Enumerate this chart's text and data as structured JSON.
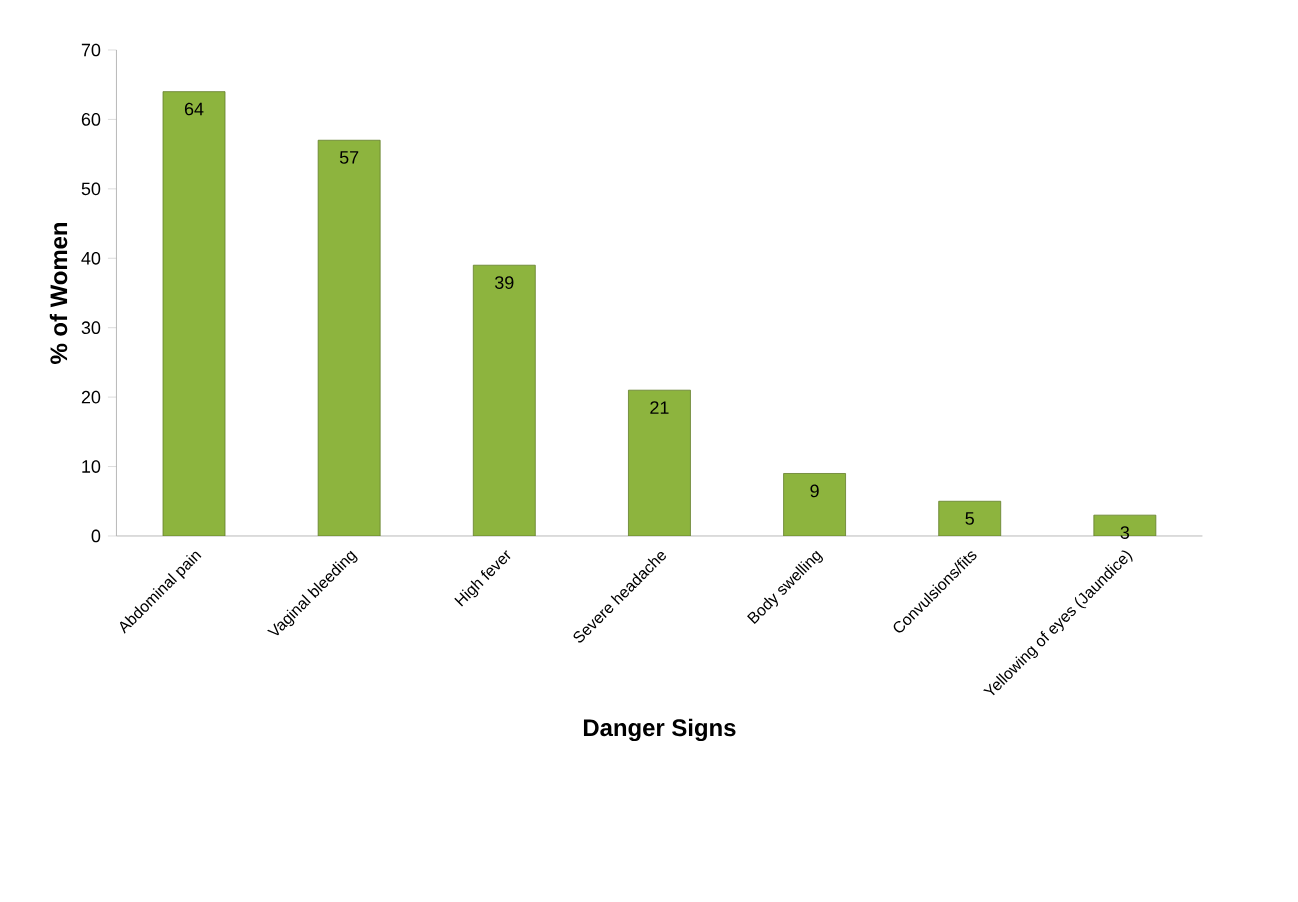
{
  "chart_data": {
    "type": "bar",
    "xlabel": "Danger Signs",
    "ylabel": "%  of Women",
    "categories": [
      "Abdominal pain",
      "Vaginal bleeding",
      "High fever",
      "Severe headache",
      "Body swelling",
      "Convulsions/fits",
      "Yellowing of eyes (Jaundice)"
    ],
    "values": [
      64,
      57,
      39,
      21,
      9,
      5,
      3
    ],
    "color": "#8db43e",
    "ylim": [
      0,
      70
    ],
    "yticks": [
      0,
      10,
      20,
      30,
      40,
      50,
      60,
      70
    ],
    "data_labels": true
  }
}
